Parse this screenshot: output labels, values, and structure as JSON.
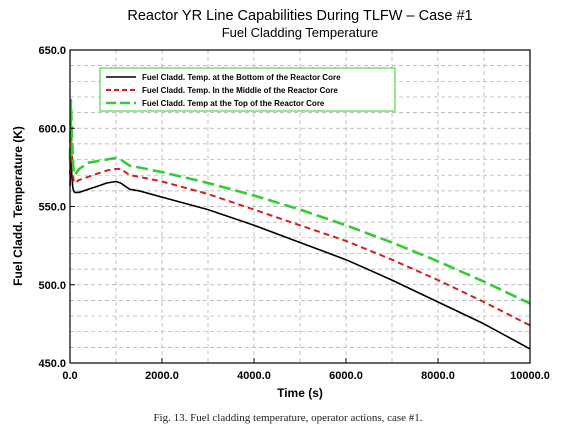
{
  "chart_data": {
    "type": "line",
    "title": "Reactor YR Line Capabilities During TLFW – Case #1",
    "subtitle": "Fuel Cladding Temperature",
    "xlabel": "Time (s)",
    "ylabel": "Fuel Cladd. Temperature (K)",
    "xlim": [
      0,
      10000
    ],
    "ylim": [
      450,
      650
    ],
    "x_ticks": [
      "0.0",
      "2000.0",
      "4000.0",
      "6000.0",
      "8000.0",
      "10000.0"
    ],
    "x_tick_values": [
      0,
      2000,
      4000,
      6000,
      8000,
      10000
    ],
    "y_ticks": [
      "450.0",
      "500.0",
      "550.0",
      "600.0",
      "650.0"
    ],
    "y_tick_values": [
      450,
      500,
      550,
      600,
      650
    ],
    "grid": true,
    "legend_position": "top-left",
    "series": [
      {
        "name": "Fuel Cladd. Temp. at the Bottom of the Reactor Core",
        "color": "#000000",
        "dash": "solid",
        "x": [
          0,
          20,
          40,
          60,
          80,
          100,
          200,
          400,
          600,
          800,
          1000,
          1100,
          1200,
          1300,
          1500,
          2000,
          3000,
          4000,
          5000,
          6000,
          7000,
          8000,
          9000,
          10000
        ],
        "y": [
          563,
          582,
          570,
          562,
          560,
          559,
          559,
          561,
          563,
          565,
          566,
          565,
          563,
          561,
          560,
          556,
          548,
          538,
          527,
          516,
          503,
          489,
          475,
          459
        ]
      },
      {
        "name": "Fuel Cladd. Temp. In the Middle of the Reactor Core",
        "color": "#cc2222",
        "dash": "dashed",
        "x": [
          0,
          20,
          40,
          60,
          80,
          100,
          200,
          400,
          600,
          800,
          1000,
          1100,
          1200,
          1300,
          1500,
          2000,
          3000,
          4000,
          5000,
          6000,
          7000,
          8000,
          9000,
          10000
        ],
        "y": [
          570,
          605,
          585,
          572,
          566,
          565,
          567,
          569,
          571,
          573,
          574,
          574,
          572,
          570,
          569,
          566,
          558,
          548,
          538,
          528,
          516,
          503,
          489,
          474
        ]
      },
      {
        "name": "Fuel Cladd. Temp at the Top of the Reactor Core",
        "color": "#33cc33",
        "dash": "longdash",
        "x": [
          0,
          20,
          40,
          60,
          80,
          100,
          200,
          400,
          600,
          800,
          1000,
          1100,
          1200,
          1300,
          1500,
          2000,
          3000,
          4000,
          5000,
          6000,
          7000,
          8000,
          9000,
          10000
        ],
        "y": [
          580,
          618,
          598,
          580,
          572,
          570,
          574,
          578,
          579,
          580,
          581,
          580,
          578,
          576,
          575,
          572,
          565,
          557,
          548,
          538,
          527,
          515,
          502,
          488
        ]
      }
    ]
  },
  "caption": "Fig. 13.  Fuel cladding temperature, operator actions, case #1."
}
